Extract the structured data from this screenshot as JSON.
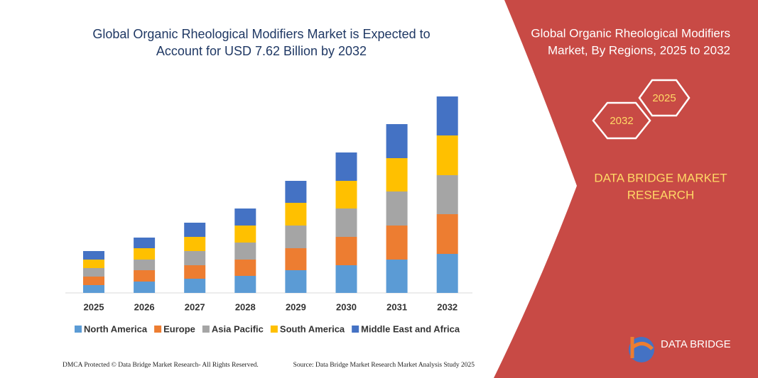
{
  "chart_data": {
    "type": "bar",
    "stacked": true,
    "title": [
      "Global Organic Rheological Modifiers Market is Expected to",
      "Account for USD 7.62 Billion by 2032"
    ],
    "side_title": [
      "Global Organic Rheological Modifiers",
      "Market, By Regions, 2025 to 2032"
    ],
    "badges": [
      "2025",
      "2032"
    ],
    "brand": [
      "DATA BRIDGE MARKET",
      "RESEARCH"
    ],
    "logo": "DATA BRIDGE",
    "footer_left": "DMCA Protected © Data Bridge Market Research- All Rights Reserved.",
    "footer_right": "Source: Data Bridge Market Research Market Analysis Study 2025",
    "categories": [
      "2025",
      "2026",
      "2027",
      "2028",
      "2029",
      "2030",
      "2031",
      "2032"
    ],
    "series": [
      {
        "name": "North America",
        "color": "#5b9bd5",
        "values": [
          11,
          16,
          20,
          24,
          32,
          39,
          47,
          55
        ]
      },
      {
        "name": "Europe",
        "color": "#ed7d31",
        "values": [
          12,
          16,
          19,
          23,
          31,
          40,
          48,
          56
        ]
      },
      {
        "name": "Asia Pacific",
        "color": "#a5a5a5",
        "values": [
          12,
          15,
          20,
          24,
          32,
          40,
          48,
          55
        ]
      },
      {
        "name": "South America",
        "color": "#ffc000",
        "values": [
          12,
          16,
          20,
          24,
          32,
          39,
          47,
          56
        ]
      },
      {
        "name": "Middle East and Africa",
        "color": "#4472c4",
        "values": [
          12,
          15,
          20,
          24,
          31,
          40,
          48,
          55
        ]
      }
    ]
  }
}
